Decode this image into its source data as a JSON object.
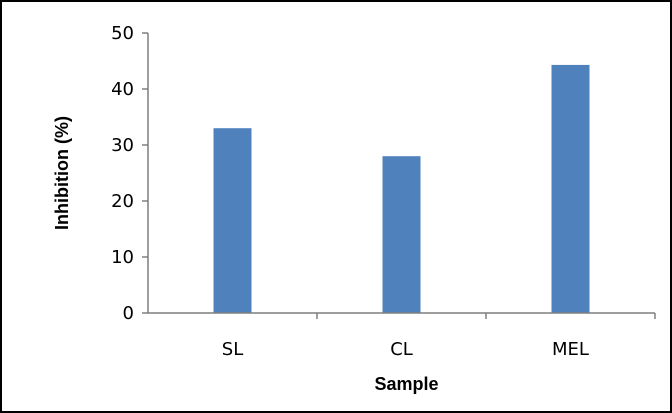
{
  "chart_data": {
    "type": "bar",
    "categories": [
      "SL",
      "CL",
      "MEL"
    ],
    "values": [
      33,
      28,
      44.3
    ],
    "xlabel": "Sample",
    "ylabel": "Inhibition (%)",
    "ylim": [
      0,
      50
    ],
    "yticks": [
      0,
      10,
      20,
      30,
      40,
      50
    ],
    "grid": false,
    "legend": "none",
    "bar_color": "#4f81bd",
    "axis_color": "#7f7f7f"
  }
}
